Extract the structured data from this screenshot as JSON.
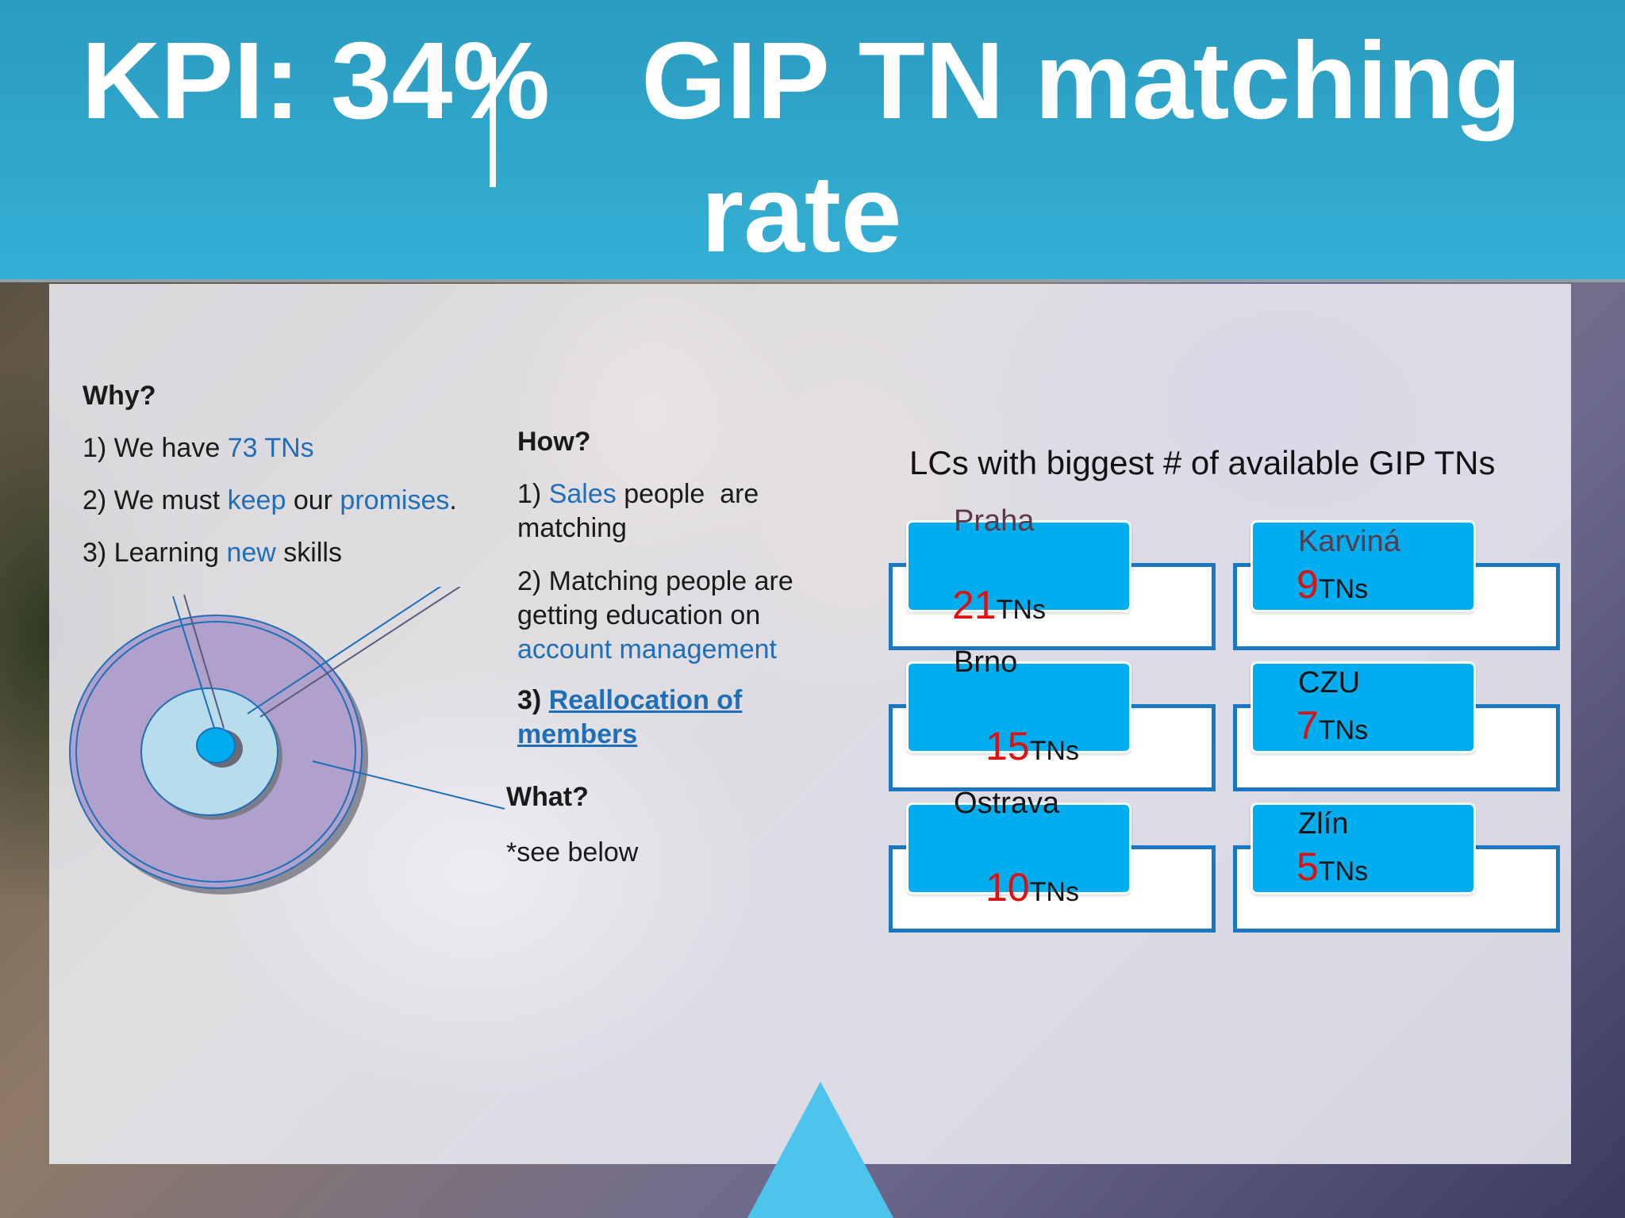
{
  "title": {
    "line1": "KPI: 34%   GIP TN matching",
    "line2": "rate"
  },
  "why": {
    "heading": "Why?",
    "items": [
      {
        "prefix": "1) We have ",
        "hl1": "73 TNs",
        "mid": "",
        "hl2": "",
        "suffix": ""
      },
      {
        "prefix": "2) We must ",
        "hl1": "keep",
        "mid": " our ",
        "hl2": "promises",
        "suffix": "."
      },
      {
        "prefix": "3) Learning ",
        "hl1": "new",
        "mid": " skills",
        "hl2": "",
        "suffix": ""
      }
    ]
  },
  "how": {
    "heading": "How?",
    "item1_prefix": "1) ",
    "item1_hl": "Sales",
    "item1_suffix": " people  are matching",
    "item2_text": "2) Matching people are getting education on ",
    "item2_hl": "account management",
    "item3_prefix": "3) ",
    "item3_link": "Reallocation of members"
  },
  "what": {
    "heading": "What?",
    "text": "*see below"
  },
  "lcs": {
    "heading": "LCs with biggest # of available GIP TNs",
    "unit": "TNs",
    "items": [
      {
        "name": "Praha",
        "count": "21"
      },
      {
        "name": "Karviná",
        "count": "9"
      },
      {
        "name": "Brno",
        "count": "15"
      },
      {
        "name": "CZU",
        "count": "7"
      },
      {
        "name": "Ostrava",
        "count": "10"
      },
      {
        "name": "Zlín",
        "count": "5"
      }
    ]
  },
  "colors": {
    "header": "#34b0d4",
    "accent_blue": "#1e6fb8",
    "count_red": "#e01010",
    "lc_box": "#00aeef",
    "lc_border": "#1a78c2",
    "ring_outer": "#b0a0cc",
    "ring_middle": "#b8dcec",
    "ring_core": "#00aeef"
  }
}
